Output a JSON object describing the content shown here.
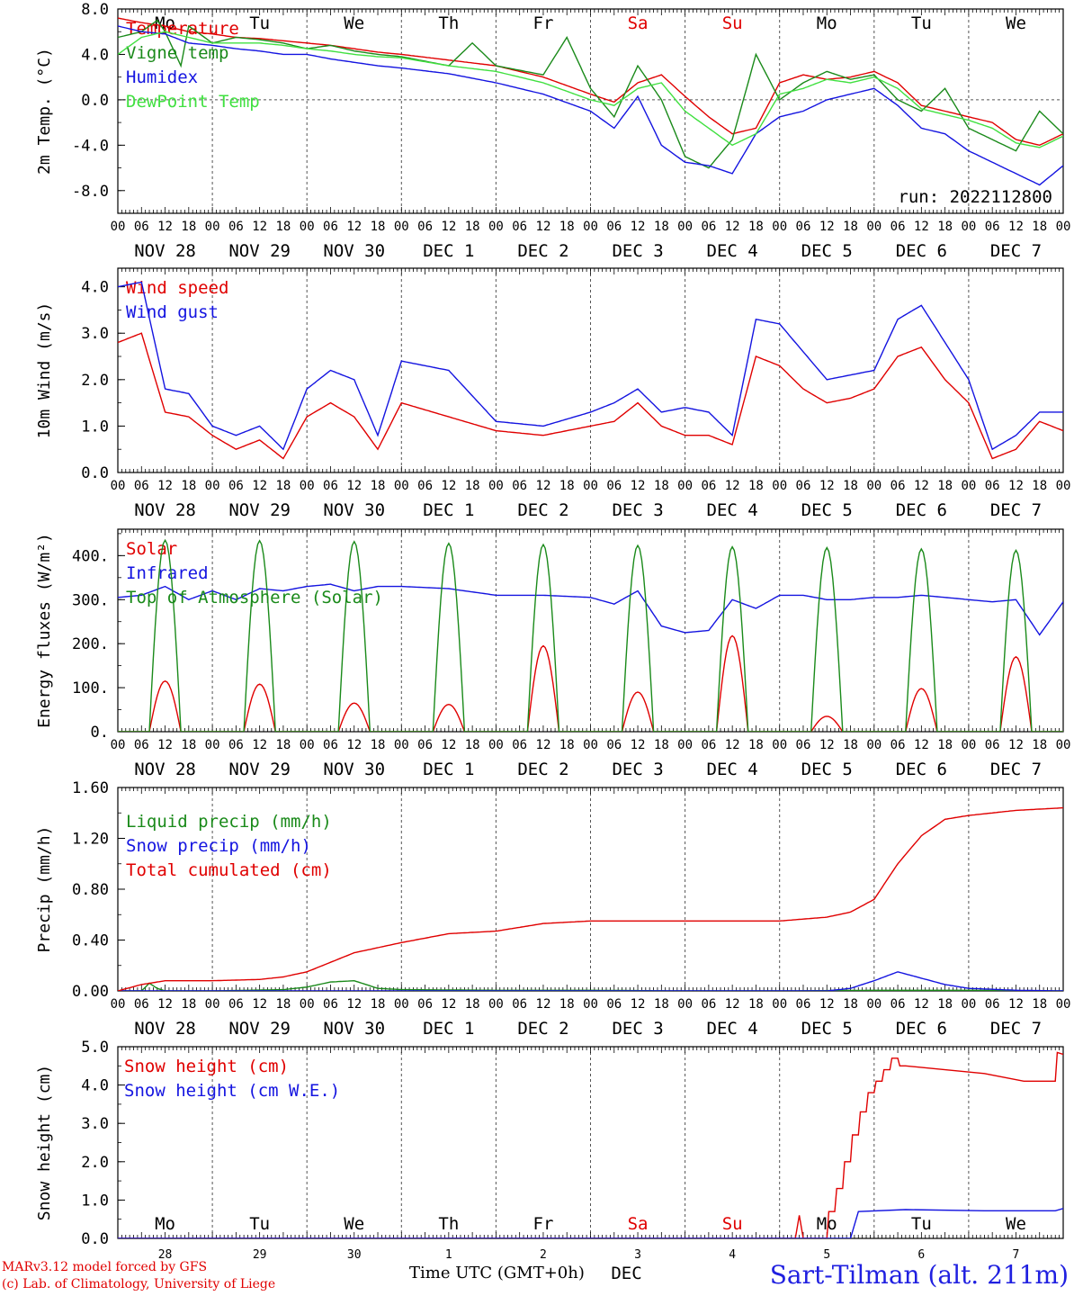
{
  "footer": {
    "credit_line1": "MARv3.12 model forced by GFS",
    "credit_line2": "(c) Lab. of Climatology, University of Liege",
    "x_axis_title": "Time UTC (GMT+0h)",
    "station": "Sart-Tilman (alt. 211m)"
  },
  "colors": {
    "red": "#e00000",
    "green": "#1a8a1a",
    "blue": "#1414e0",
    "lightgreen": "#40e040",
    "gray": "#808080",
    "weekend": "#e00000"
  },
  "time_axis": {
    "hour_ticks": [
      "00",
      "06",
      "12",
      "18"
    ],
    "final_tick": "00",
    "date_labels": [
      "NOV 28",
      "NOV 29",
      "NOV 30",
      "DEC  1",
      "DEC  2",
      "DEC  3",
      "DEC  4",
      "DEC  5",
      "DEC  6",
      "DEC  7"
    ],
    "weekdays": [
      "Mo",
      "Tu",
      "We",
      "Th",
      "Fr",
      "Sa",
      "Su",
      "Mo",
      "Tu",
      "We"
    ],
    "weekend_days": [
      "Sa",
      "Su"
    ],
    "day_numbers": [
      "28",
      "29",
      "30",
      "1",
      "2",
      "3",
      "4",
      "5",
      "6",
      "7"
    ],
    "snow_month_label": "DEC"
  },
  "chart_data": [
    {
      "type": "line",
      "ylabel": "2m Temp. (°C)",
      "ylim": [
        -10,
        8
      ],
      "yticks": [
        "8.0",
        "4.0",
        "0.0",
        "-4.0",
        "-8.0"
      ],
      "run_label": "run: 2022112800",
      "x_unit": "hours since 2022-11-28 00 UTC",
      "zero_line": true,
      "series": [
        {
          "name": "Temperature",
          "color": "red",
          "x": [
            0,
            6,
            12,
            18,
            24,
            30,
            36,
            42,
            48,
            54,
            60,
            66,
            72,
            84,
            96,
            108,
            120,
            126,
            132,
            138,
            144,
            150,
            156,
            162,
            168,
            174,
            180,
            186,
            192,
            198,
            204,
            210,
            216,
            222,
            228,
            234,
            240
          ],
          "y": [
            7.2,
            6.8,
            6.5,
            6.0,
            5.8,
            5.5,
            5.4,
            5.2,
            5.0,
            4.8,
            4.5,
            4.2,
            4.0,
            3.5,
            3.0,
            2.0,
            0.5,
            -0.2,
            1.5,
            2.2,
            0.3,
            -1.5,
            -3.0,
            -2.5,
            1.5,
            2.2,
            1.8,
            2.0,
            2.5,
            1.5,
            -0.5,
            -1.0,
            -1.5,
            -2.0,
            -3.5,
            -4.0,
            -3.0
          ]
        },
        {
          "name": "Vigne temp",
          "color": "green",
          "x": [
            0,
            6,
            10,
            12,
            16,
            18,
            24,
            30,
            36,
            42,
            48,
            54,
            60,
            66,
            72,
            84,
            90,
            96,
            108,
            114,
            120,
            126,
            132,
            138,
            144,
            150,
            156,
            162,
            168,
            174,
            180,
            186,
            192,
            198,
            204,
            210,
            216,
            222,
            228,
            234,
            240
          ],
          "y": [
            5.5,
            6.0,
            7.0,
            6.0,
            3.0,
            6.5,
            5.0,
            5.5,
            5.3,
            5.0,
            4.5,
            4.8,
            4.3,
            4.0,
            3.8,
            3.0,
            5.0,
            3.0,
            2.2,
            5.5,
            1.0,
            -1.5,
            3.0,
            0.0,
            -5.0,
            -6.0,
            -3.5,
            4.0,
            0.0,
            1.5,
            2.5,
            1.8,
            2.2,
            0.0,
            -1.0,
            1.0,
            -2.5,
            -3.5,
            -4.5,
            -1.0,
            -3.0
          ]
        },
        {
          "name": "Humidex",
          "color": "blue",
          "x": [
            0,
            6,
            12,
            18,
            24,
            30,
            36,
            42,
            48,
            54,
            60,
            66,
            72,
            84,
            96,
            108,
            120,
            126,
            132,
            138,
            144,
            150,
            156,
            162,
            168,
            174,
            180,
            186,
            192,
            198,
            204,
            210,
            216,
            222,
            228,
            234,
            240
          ],
          "y": [
            6.5,
            6.0,
            5.8,
            5.0,
            4.8,
            4.5,
            4.3,
            4.0,
            4.0,
            3.6,
            3.3,
            3.0,
            2.8,
            2.3,
            1.5,
            0.5,
            -1.0,
            -2.5,
            0.3,
            -4.0,
            -5.5,
            -5.8,
            -6.5,
            -3.0,
            -1.5,
            -1.0,
            0.0,
            0.5,
            1.0,
            -0.5,
            -2.5,
            -3.0,
            -4.5,
            -5.5,
            -6.5,
            -7.5,
            -5.8
          ]
        },
        {
          "name": "DewPoint Temp",
          "color": "lightgreen",
          "x": [
            0,
            6,
            12,
            18,
            24,
            30,
            36,
            42,
            48,
            54,
            60,
            66,
            72,
            84,
            96,
            108,
            120,
            126,
            132,
            138,
            144,
            150,
            156,
            162,
            168,
            174,
            180,
            186,
            192,
            198,
            204,
            210,
            216,
            222,
            228,
            234,
            240
          ],
          "y": [
            4.0,
            5.5,
            6.0,
            5.5,
            5.0,
            5.0,
            5.0,
            4.8,
            4.5,
            4.3,
            4.0,
            3.8,
            3.7,
            3.0,
            2.5,
            1.5,
            0.0,
            -0.5,
            1.0,
            1.5,
            -1.0,
            -2.5,
            -4.0,
            -3.0,
            0.5,
            1.0,
            1.8,
            1.5,
            2.0,
            1.0,
            -0.8,
            -1.3,
            -1.8,
            -2.5,
            -3.8,
            -4.2,
            -3.2
          ]
        }
      ]
    },
    {
      "type": "line",
      "ylabel": "10m Wind (m/s)",
      "ylim": [
        0,
        4.4
      ],
      "yticks": [
        "4.0",
        "3.0",
        "2.0",
        "1.0",
        "0.0"
      ],
      "x_unit": "hours since 2022-11-28 00 UTC",
      "series": [
        {
          "name": "Wind speed",
          "color": "red",
          "x": [
            0,
            6,
            12,
            18,
            24,
            30,
            36,
            42,
            48,
            54,
            60,
            66,
            72,
            84,
            96,
            108,
            120,
            126,
            132,
            138,
            144,
            150,
            156,
            162,
            168,
            174,
            180,
            186,
            192,
            198,
            204,
            210,
            216,
            222,
            228,
            234,
            240
          ],
          "y": [
            2.8,
            3.0,
            1.3,
            1.2,
            0.8,
            0.5,
            0.7,
            0.3,
            1.2,
            1.5,
            1.2,
            0.5,
            1.5,
            1.2,
            0.9,
            0.8,
            1.0,
            1.1,
            1.5,
            1.0,
            0.8,
            0.8,
            0.6,
            2.5,
            2.3,
            1.8,
            1.5,
            1.6,
            1.8,
            2.5,
            2.7,
            2.0,
            1.5,
            0.3,
            0.5,
            1.1,
            0.9
          ]
        },
        {
          "name": "Wind gust",
          "color": "blue",
          "x": [
            0,
            6,
            12,
            18,
            24,
            30,
            36,
            42,
            48,
            54,
            60,
            66,
            72,
            84,
            96,
            108,
            120,
            126,
            132,
            138,
            144,
            150,
            156,
            162,
            168,
            174,
            180,
            186,
            192,
            198,
            204,
            210,
            216,
            222,
            228,
            234,
            240
          ],
          "y": [
            4.0,
            4.1,
            1.8,
            1.7,
            1.0,
            0.8,
            1.0,
            0.5,
            1.8,
            2.2,
            2.0,
            0.8,
            2.4,
            2.2,
            1.1,
            1.0,
            1.3,
            1.5,
            1.8,
            1.3,
            1.4,
            1.3,
            0.8,
            3.3,
            3.2,
            2.6,
            2.0,
            2.1,
            2.2,
            3.3,
            3.6,
            2.8,
            2.0,
            0.5,
            0.8,
            1.3,
            1.3
          ]
        }
      ]
    },
    {
      "type": "line",
      "ylabel": "Energy fluxes (W/m²)",
      "ylim": [
        0,
        460
      ],
      "yticks": [
        "400.",
        "300.",
        "200.",
        "100.",
        "0."
      ],
      "x_unit": "hours since 2022-11-28 00 UTC",
      "series": [
        {
          "name": "Solar",
          "color": "red",
          "diurnal_peak_hour": 12,
          "daily_peaks": [
            115,
            108,
            65,
            62,
            195,
            90,
            218,
            35,
            98,
            170
          ]
        },
        {
          "name": "Infrared",
          "color": "blue",
          "x": [
            0,
            6,
            12,
            18,
            24,
            30,
            36,
            42,
            48,
            54,
            60,
            66,
            72,
            84,
            96,
            108,
            120,
            126,
            132,
            138,
            144,
            150,
            156,
            162,
            168,
            174,
            180,
            186,
            192,
            198,
            204,
            210,
            216,
            222,
            228,
            234,
            240
          ],
          "y": [
            305,
            310,
            330,
            300,
            320,
            300,
            325,
            320,
            330,
            335,
            320,
            330,
            330,
            325,
            310,
            310,
            305,
            290,
            320,
            240,
            225,
            230,
            300,
            280,
            310,
            310,
            300,
            300,
            305,
            305,
            310,
            305,
            300,
            295,
            300,
            220,
            295
          ]
        },
        {
          "name": "Top of Atmosphere (Solar)",
          "color": "green",
          "diurnal_peak_hour": 12,
          "daily_peaks": [
            435,
            434,
            432,
            428,
            425,
            423,
            420,
            418,
            415,
            412
          ]
        }
      ]
    },
    {
      "type": "line",
      "ylabel": "Precip (mm/h)",
      "ylim": [
        0,
        1.6
      ],
      "yticks": [
        "1.60",
        "1.20",
        "0.80",
        "0.40",
        "0.00"
      ],
      "x_unit": "hours since 2022-11-28 00 UTC",
      "series": [
        {
          "name": "Liquid precip (mm/h)",
          "color": "green",
          "x": [
            0,
            6,
            8,
            10,
            12,
            24,
            42,
            48,
            54,
            60,
            66,
            72,
            96,
            120,
            144,
            168,
            192,
            216,
            240
          ],
          "y": [
            0,
            0,
            0.06,
            0.02,
            0,
            0,
            0.01,
            0.03,
            0.07,
            0.08,
            0.02,
            0.01,
            0.005,
            0.005,
            0,
            0,
            0.005,
            0.005,
            0
          ]
        },
        {
          "name": "Snow precip (mm/h)",
          "color": "blue",
          "x": [
            0,
            180,
            186,
            192,
            198,
            204,
            210,
            216,
            228,
            240
          ],
          "y": [
            0,
            0,
            0.02,
            0.08,
            0.15,
            0.1,
            0.05,
            0.02,
            0.005,
            0
          ]
        },
        {
          "name": "Total cumulated (cm)",
          "color": "red",
          "x": [
            0,
            6,
            12,
            24,
            36,
            42,
            48,
            60,
            72,
            84,
            96,
            108,
            120,
            132,
            144,
            156,
            168,
            180,
            186,
            192,
            198,
            204,
            210,
            216,
            228,
            240
          ],
          "y": [
            0,
            0.05,
            0.08,
            0.08,
            0.09,
            0.11,
            0.15,
            0.3,
            0.38,
            0.45,
            0.47,
            0.53,
            0.55,
            0.55,
            0.55,
            0.55,
            0.55,
            0.58,
            0.62,
            0.72,
            1.0,
            1.22,
            1.35,
            1.38,
            1.42,
            1.44
          ]
        }
      ]
    },
    {
      "type": "line",
      "ylabel": "Snow height (cm)",
      "ylim": [
        0,
        5.0
      ],
      "yticks": [
        "5.0",
        "4.0",
        "3.0",
        "2.0",
        "1.0",
        "0.0"
      ],
      "x_unit": "hours since 2022-11-28 00 UTC",
      "series": [
        {
          "name": "Snow height (cm)",
          "color": "red",
          "x": [
            0,
            172,
            173,
            174,
            175,
            178,
            180,
            180.5,
            182,
            182.5,
            184,
            184.5,
            186,
            186.5,
            188,
            188.5,
            190,
            190.5,
            192,
            192.5,
            194,
            194.5,
            196,
            196.5,
            198,
            198.5,
            200,
            210,
            220,
            230,
            238,
            238.5,
            240
          ],
          "y": [
            0,
            0,
            0.6,
            0,
            0,
            0,
            0,
            0.7,
            0.7,
            1.3,
            1.3,
            2.0,
            2.0,
            2.7,
            2.7,
            3.3,
            3.3,
            3.8,
            3.8,
            4.1,
            4.1,
            4.4,
            4.4,
            4.7,
            4.7,
            4.5,
            4.5,
            4.4,
            4.3,
            4.1,
            4.1,
            4.85,
            4.8
          ]
        },
        {
          "name": "Snow height (cm W.E.)",
          "color": "blue",
          "x": [
            0,
            186,
            188,
            200,
            220,
            238,
            240
          ],
          "y": [
            0,
            0,
            0.7,
            0.75,
            0.72,
            0.72,
            0.78
          ]
        }
      ]
    }
  ]
}
